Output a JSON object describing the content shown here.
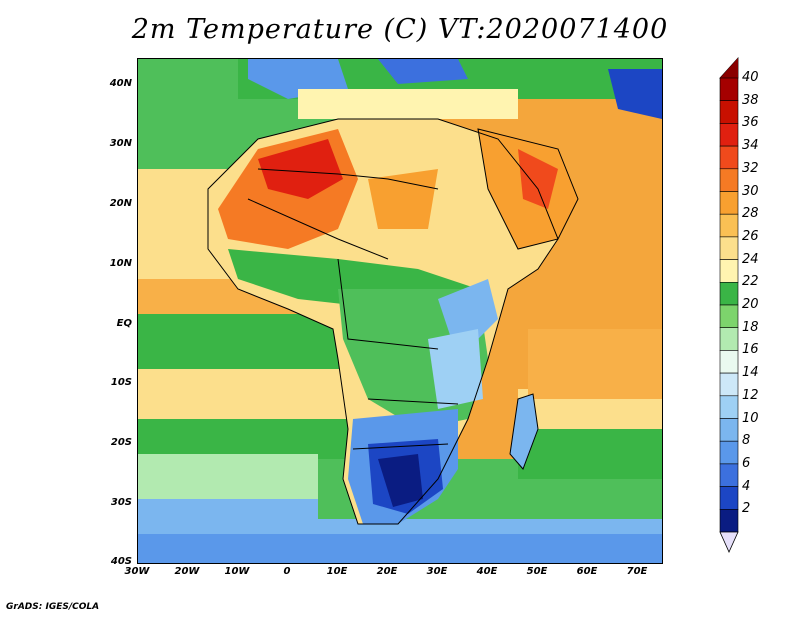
{
  "title": "2m Temperature (C) VT:2020071400",
  "credit": "GrADS: IGES/COLA",
  "y_axis_labels": [
    "40N",
    "30N",
    "20N",
    "10N",
    "EQ",
    "10S",
    "20S",
    "30S",
    "40S"
  ],
  "x_axis_labels": [
    "30W",
    "20W",
    "10W",
    "0",
    "10E",
    "20E",
    "30E",
    "40E",
    "50E",
    "60E",
    "70E"
  ],
  "colorbar": {
    "labels": [
      "40",
      "38",
      "36",
      "34",
      "32",
      "30",
      "28",
      "26",
      "24",
      "22",
      "20",
      "18",
      "16",
      "14",
      "12",
      "10",
      "8",
      "6",
      "4",
      "2"
    ],
    "colors": [
      "#a50000",
      "#c81000",
      "#e02010",
      "#f04a1c",
      "#f57a24",
      "#f8a030",
      "#fac054",
      "#fcdf8c",
      "#fff4b0",
      "#3ab546",
      "#7dd46c",
      "#b2eab0",
      "#eafaf0",
      "#cde8f8",
      "#9ed0f4",
      "#7bb6ef",
      "#5a98ea",
      "#3c70de",
      "#1c46c4",
      "#0a1c82"
    ]
  }
}
